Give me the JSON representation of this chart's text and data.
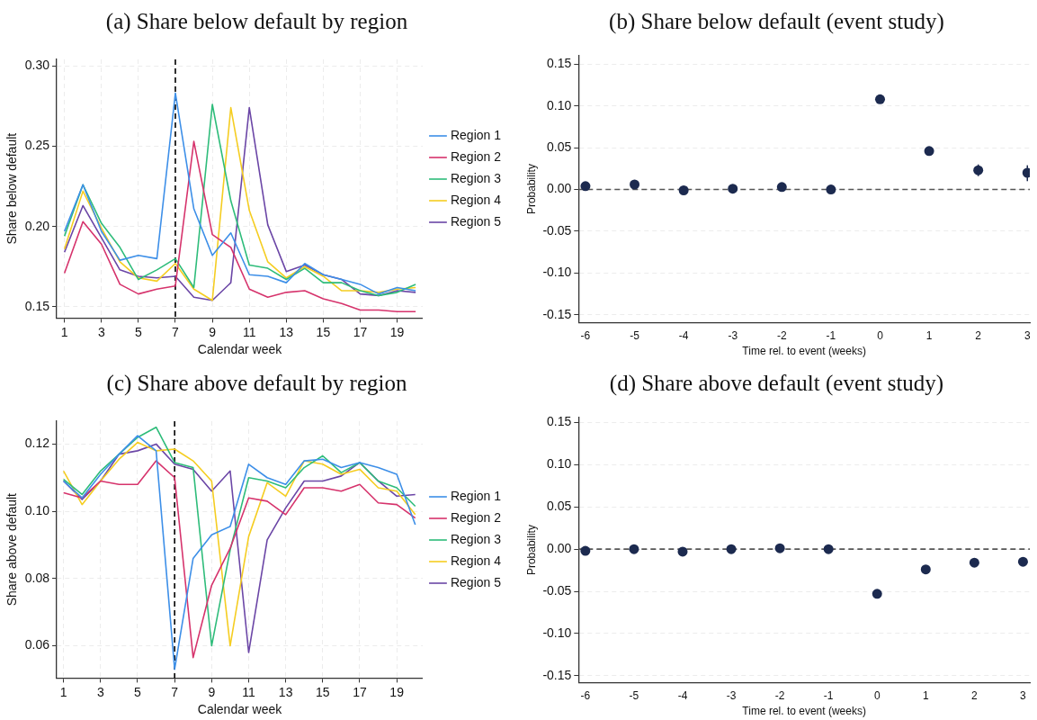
{
  "chart_data": [
    {
      "type": "line",
      "title": "(a) Share below default by region",
      "xlabel": "Calendar week",
      "ylabel": "Share below default",
      "x": [
        1,
        2,
        3,
        4,
        5,
        6,
        7,
        8,
        9,
        10,
        11,
        12,
        13,
        14,
        15,
        16,
        17,
        18,
        19,
        20
      ],
      "xlim": [
        0.58,
        20.38
      ],
      "xticks": [
        1,
        3,
        5,
        7,
        9,
        11,
        13,
        15,
        17,
        19
      ],
      "ylim": [
        0.143,
        0.304
      ],
      "yticks": [
        {
          "value": 0.15,
          "label": "0.15"
        },
        {
          "value": 0.2,
          "label": "0.20"
        },
        {
          "value": 0.25,
          "label": "0.25"
        },
        {
          "value": 0.3,
          "label": "0.30"
        }
      ],
      "grid": true,
      "legend": "right",
      "marker": "none",
      "line_style": "solid",
      "series": [
        {
          "name": "Region 1",
          "color": "#3d8fe8",
          "values": [
            0.197,
            0.226,
            0.197,
            0.179,
            0.182,
            0.18,
            0.283,
            0.211,
            0.182,
            0.196,
            0.17,
            0.169,
            0.165,
            0.177,
            0.17,
            0.167,
            0.164,
            0.158,
            0.162,
            0.16
          ]
        },
        {
          "name": "Region 2",
          "color": "#d6336c",
          "values": [
            0.171,
            0.203,
            0.189,
            0.164,
            0.158,
            0.161,
            0.163,
            0.253,
            0.195,
            0.187,
            0.161,
            0.156,
            0.159,
            0.16,
            0.155,
            0.152,
            0.148,
            0.148,
            0.147,
            0.147
          ]
        },
        {
          "name": "Region 3",
          "color": "#2ebc7a",
          "values": [
            0.194,
            0.226,
            0.202,
            0.187,
            0.167,
            0.173,
            0.18,
            0.162,
            0.276,
            0.216,
            0.176,
            0.174,
            0.167,
            0.174,
            0.165,
            0.165,
            0.16,
            0.157,
            0.159,
            0.164
          ]
        },
        {
          "name": "Region 4",
          "color": "#f5cd21",
          "values": [
            0.186,
            0.222,
            0.199,
            0.178,
            0.168,
            0.166,
            0.177,
            0.161,
            0.154,
            0.274,
            0.21,
            0.178,
            0.168,
            0.175,
            0.169,
            0.16,
            0.16,
            0.159,
            0.161,
            0.162
          ]
        },
        {
          "name": "Region 5",
          "color": "#6b46a6",
          "values": [
            0.184,
            0.213,
            0.193,
            0.173,
            0.169,
            0.168,
            0.169,
            0.156,
            0.154,
            0.165,
            0.274,
            0.201,
            0.172,
            0.176,
            0.17,
            0.167,
            0.158,
            0.157,
            0.16,
            0.159
          ]
        }
      ],
      "ref_lines": [
        {
          "axis": "x",
          "value": 7,
          "color": "#000000",
          "line_style": "dashed"
        }
      ]
    },
    {
      "type": "scatter",
      "title": "(b) Share below default (event study)",
      "xlabel": "Time rel. to event (weeks)",
      "ylabel": "Probability",
      "x": [
        -6,
        -5,
        -4,
        -3,
        -2,
        -1,
        0,
        1,
        2,
        3
      ],
      "xlim": [
        -6.14,
        3.05
      ],
      "xticks": [
        -6,
        -5,
        -4,
        -3,
        -2,
        -1,
        0,
        1,
        2,
        3
      ],
      "ylim": [
        -0.159,
        0.16
      ],
      "yticks": [
        {
          "value": -0.15,
          "label": "-0.15"
        },
        {
          "value": -0.1,
          "label": "-0.10"
        },
        {
          "value": -0.05,
          "label": "-0.05"
        },
        {
          "value": 0,
          "label": "0.00"
        },
        {
          "value": 0.05,
          "label": "0.05"
        },
        {
          "value": 0.1,
          "label": "0.10"
        },
        {
          "value": 0.15,
          "label": "0.15"
        }
      ],
      "grid": "y",
      "marker": "circle",
      "series": [
        {
          "color": "#1c2a4f",
          "values": [
            0.004,
            0.006,
            -0.001,
            0.001,
            0.003,
            0.0,
            0.108,
            0.046,
            0.023,
            0.02
          ],
          "errors": [
            null,
            null,
            null,
            null,
            null,
            null,
            null,
            null,
            [
              0.016,
              0.03
            ],
            [
              0.01,
              0.029
            ]
          ]
        }
      ],
      "ref_lines": [
        {
          "axis": "y",
          "value": 0,
          "color": "#555555",
          "line_style": "dashed"
        }
      ]
    },
    {
      "type": "line",
      "title": "(c) Share above default by region",
      "xlabel": "Calendar week",
      "ylabel": "Share above default",
      "x": [
        1,
        2,
        3,
        4,
        5,
        6,
        7,
        8,
        9,
        10,
        11,
        12,
        13,
        14,
        15,
        16,
        17,
        18,
        19,
        20
      ],
      "xlim": [
        0.63,
        20.4
      ],
      "xticks": [
        1,
        3,
        5,
        7,
        9,
        11,
        13,
        15,
        17,
        19
      ],
      "ylim": [
        0.0504,
        0.1268
      ],
      "yticks": [
        {
          "value": 0.06,
          "label": "0.06"
        },
        {
          "value": 0.08,
          "label": "0.08"
        },
        {
          "value": 0.1,
          "label": "0.10"
        },
        {
          "value": 0.12,
          "label": "0.12"
        }
      ],
      "grid": true,
      "legend": "right",
      "marker": "none",
      "line_style": "solid",
      "series": [
        {
          "name": "Region 1",
          "color": "#3d8fe8",
          "values": [
            0.109,
            0.104,
            0.111,
            0.117,
            0.1225,
            0.118,
            0.053,
            0.086,
            0.093,
            0.0955,
            0.114,
            0.11,
            0.108,
            0.115,
            0.1155,
            0.113,
            0.1145,
            0.113,
            0.111,
            0.096
          ]
        },
        {
          "name": "Region 2",
          "color": "#d6336c",
          "values": [
            0.1055,
            0.104,
            0.109,
            0.108,
            0.108,
            0.115,
            0.11,
            0.0565,
            0.078,
            0.089,
            0.104,
            0.103,
            0.099,
            0.107,
            0.107,
            0.106,
            0.108,
            0.1025,
            0.102,
            0.098
          ]
        },
        {
          "name": "Region 3",
          "color": "#2ebc7a",
          "values": [
            0.1095,
            0.105,
            0.112,
            0.117,
            0.122,
            0.125,
            0.1145,
            0.113,
            0.06,
            0.0885,
            0.11,
            0.109,
            0.107,
            0.113,
            0.1165,
            0.1115,
            0.1145,
            0.109,
            0.107,
            0.1015
          ]
        },
        {
          "name": "Region 4",
          "color": "#f5cd21",
          "values": [
            0.112,
            0.102,
            0.109,
            0.1155,
            0.1205,
            0.118,
            0.1185,
            0.115,
            0.109,
            0.06,
            0.0925,
            0.1085,
            0.1045,
            0.115,
            0.114,
            0.111,
            0.1125,
            0.107,
            0.106,
            0.099
          ]
        },
        {
          "name": "Region 5",
          "color": "#6b46a6",
          "values": [
            0.109,
            0.1035,
            0.109,
            0.117,
            0.118,
            0.12,
            0.114,
            0.1125,
            0.106,
            0.112,
            0.058,
            0.0915,
            0.101,
            0.109,
            0.109,
            0.1105,
            0.1145,
            0.109,
            0.1045,
            0.105
          ]
        }
      ],
      "ref_lines": [
        {
          "axis": "x",
          "value": 7,
          "color": "#000000",
          "line_style": "dashed"
        }
      ]
    },
    {
      "type": "scatter",
      "title": "(d) Share above default (event study)",
      "xlabel": "Time rel. to event (weeks)",
      "ylabel": "Probability",
      "x": [
        -6,
        -5,
        -4,
        -3,
        -2,
        -1,
        0,
        1,
        2,
        3
      ],
      "xlim": [
        -6.14,
        3.14
      ],
      "xticks": [
        -6,
        -5,
        -4,
        -3,
        -2,
        -1,
        0,
        1,
        2,
        3
      ],
      "ylim": [
        -0.158,
        0.156
      ],
      "yticks": [
        {
          "value": -0.15,
          "label": "-0.15"
        },
        {
          "value": -0.1,
          "label": "-0.10"
        },
        {
          "value": -0.05,
          "label": "-0.05"
        },
        {
          "value": 0,
          "label": "0.00"
        },
        {
          "value": 0.05,
          "label": "0.05"
        },
        {
          "value": 0.1,
          "label": "0.10"
        },
        {
          "value": 0.15,
          "label": "0.15"
        }
      ],
      "grid": "y",
      "marker": "circle",
      "series": [
        {
          "color": "#1c2a4f",
          "values": [
            -0.002,
            0.0,
            -0.003,
            0.0,
            0.001,
            0.0,
            -0.053,
            -0.024,
            -0.016,
            -0.015
          ],
          "errors": [
            null,
            null,
            null,
            null,
            null,
            null,
            null,
            null,
            null,
            [
              -0.019,
              -0.011
            ]
          ]
        }
      ],
      "ref_lines": [
        {
          "axis": "y",
          "value": 0,
          "color": "#555555",
          "line_style": "dashed"
        }
      ]
    }
  ]
}
